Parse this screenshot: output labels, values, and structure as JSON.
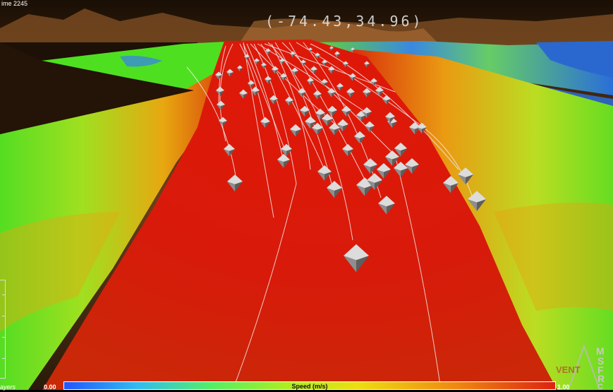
{
  "hud": {
    "time_label": "ime 2245",
    "coordinates": "(-74.43,34.96)",
    "layers_label": "ayers"
  },
  "colorbar": {
    "title": "Speed (m/s)",
    "min_label": "0.00",
    "max_label": "1.00",
    "colors": [
      "#2255ff",
      "#33bbee",
      "#55ee66",
      "#aaee22",
      "#eedd11",
      "#ee8811",
      "#dd2211"
    ]
  },
  "logo": {
    "text": "MSFRC",
    "watermark": "VENT"
  },
  "scene": {
    "colors": {
      "land": "#3a2510",
      "terrain_highlight": "#a86a30",
      "high_speed": "#d81a0a",
      "mid_speed": "#66dd22",
      "low_speed": "#2a6fd8",
      "streamline": "#f2e8e8",
      "glyph": "#b8b8b8"
    }
  }
}
